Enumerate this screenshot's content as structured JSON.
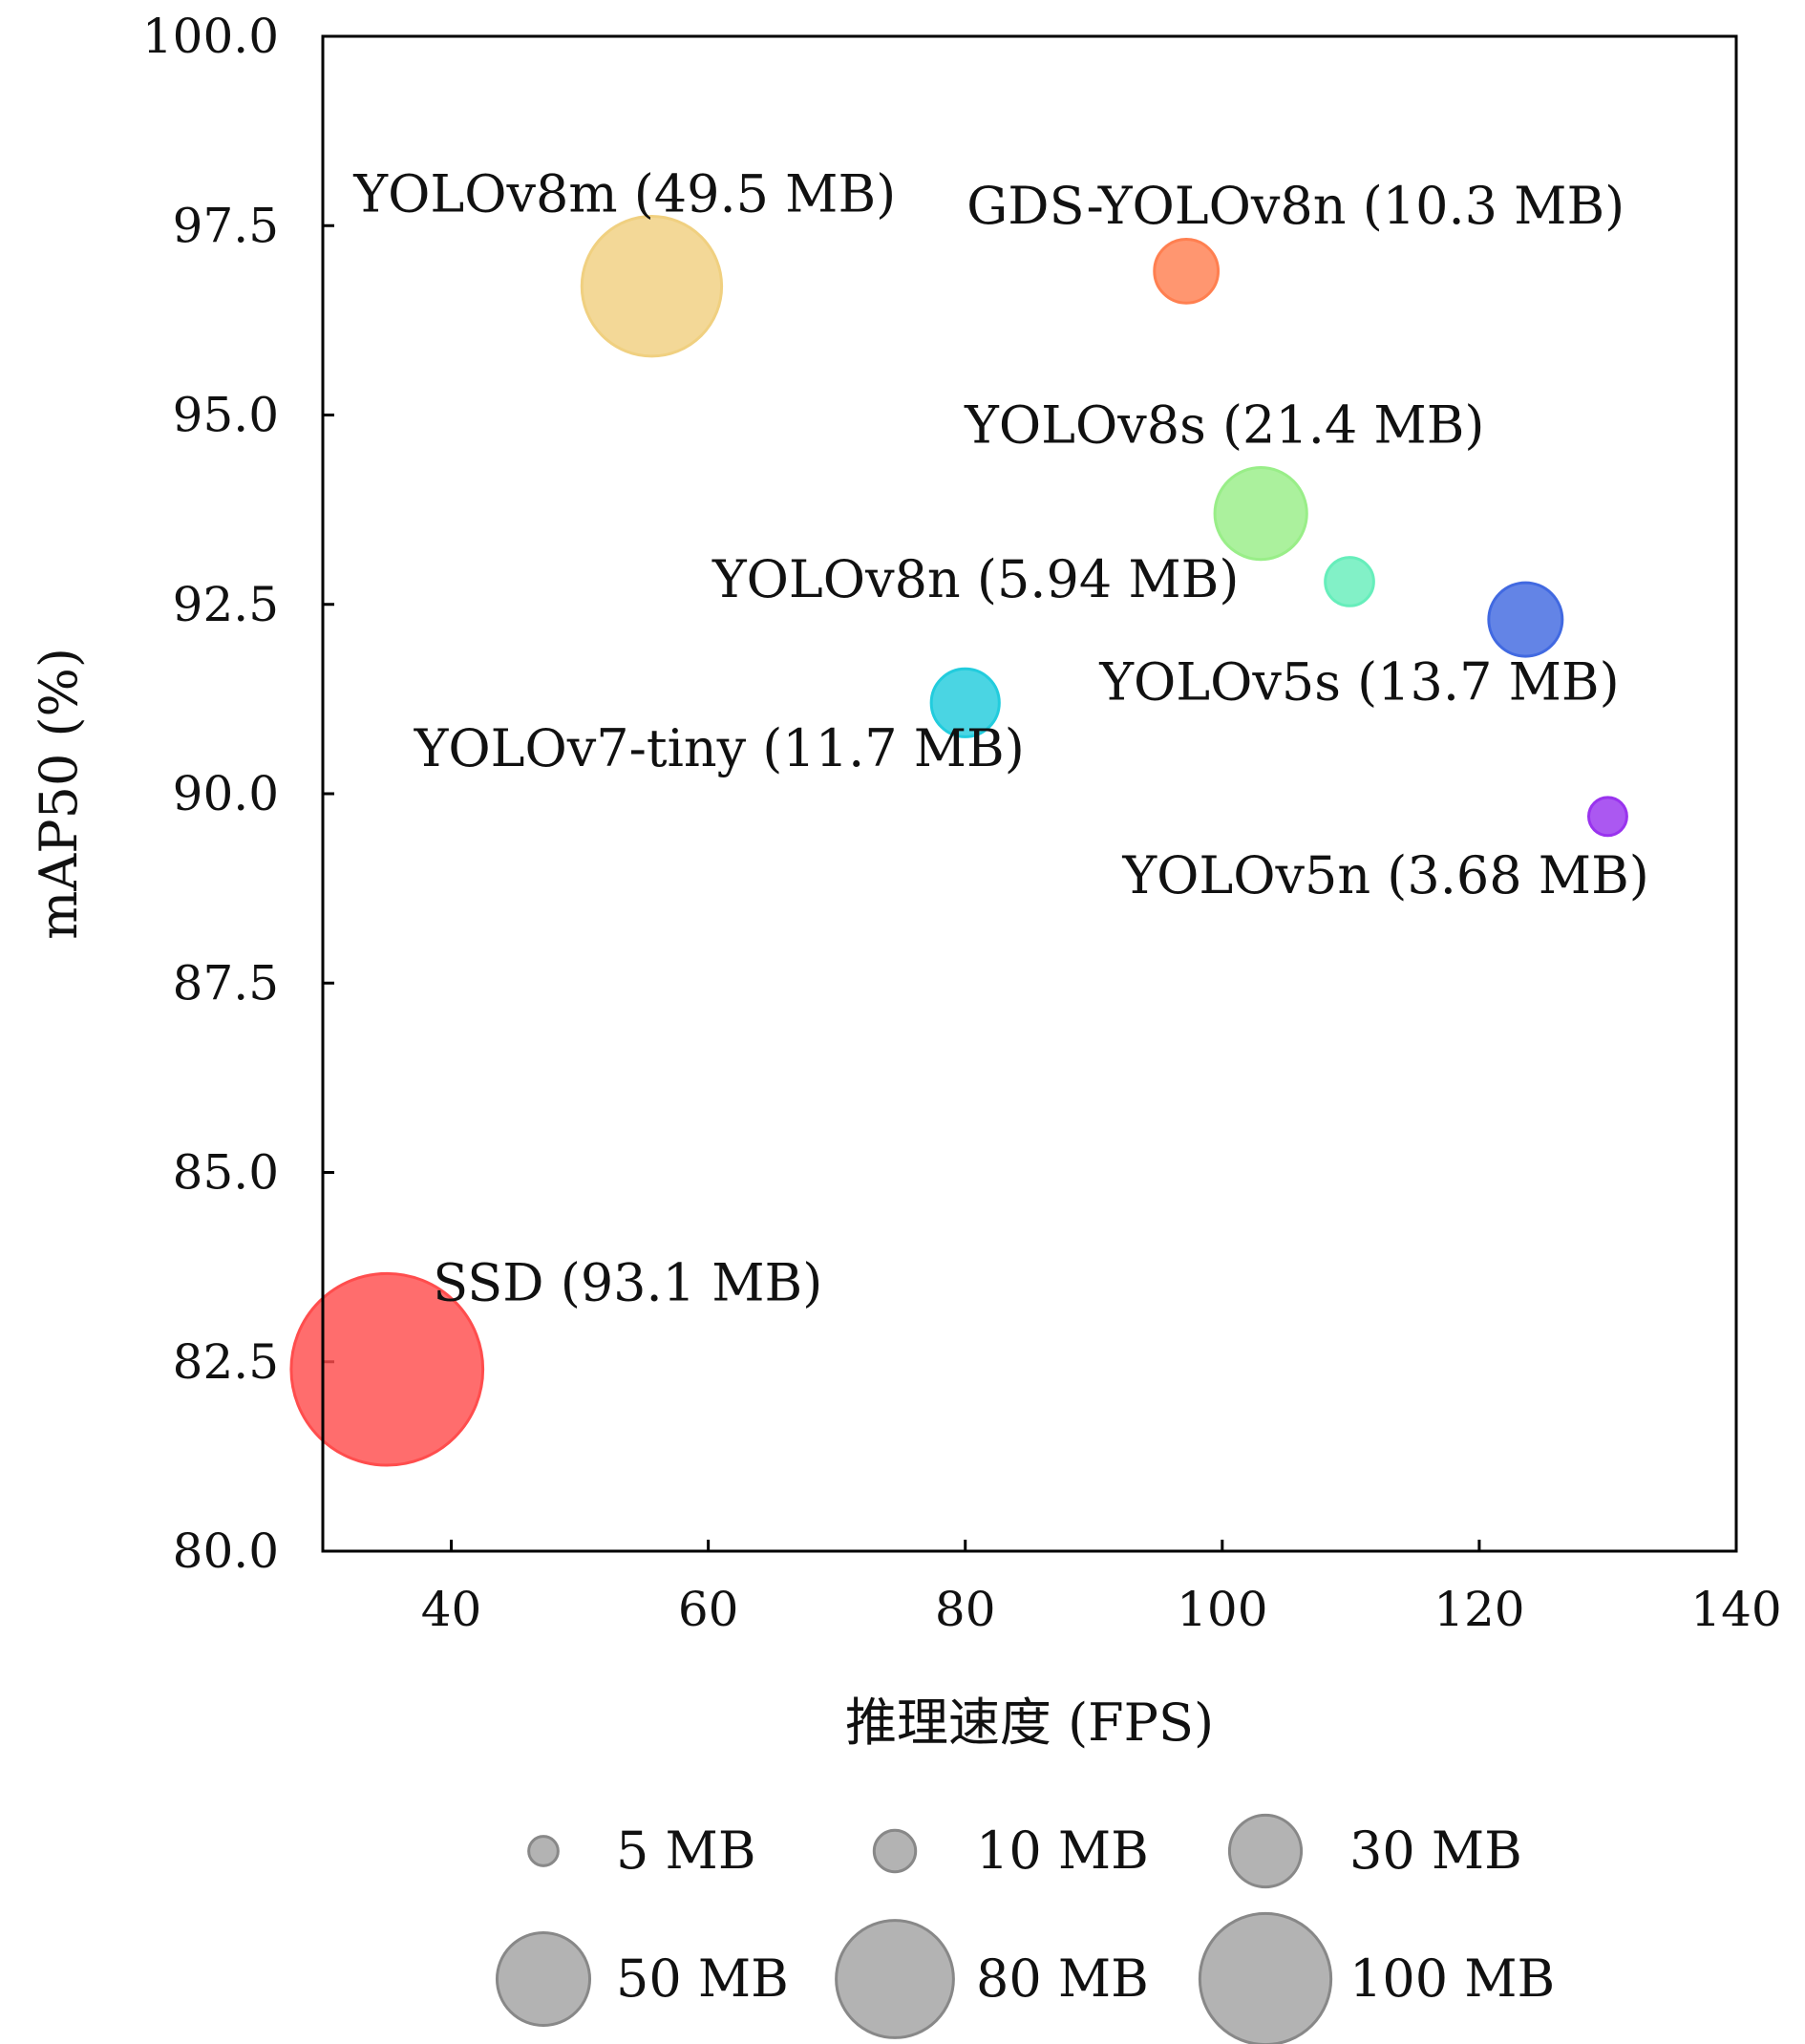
{
  "chart_data": {
    "type": "scatter",
    "xlabel": "推理速度 (FPS)",
    "ylabel": "mAP50 (%)",
    "xlim": [
      30,
      140
    ],
    "ylim": [
      80.0,
      100.0
    ],
    "xticks": [
      40,
      60,
      80,
      100,
      120,
      140
    ],
    "yticks": [
      "80.0",
      "82.5",
      "85.0",
      "87.5",
      "90.0",
      "92.5",
      "95.0",
      "97.5",
      "100.0"
    ],
    "grid": false,
    "size_unit": "MB",
    "points": [
      {
        "label": "SSD (93.1 MB)",
        "x": 35,
        "y": 82.4,
        "size": 93.1,
        "color": "#ff4d4d"
      },
      {
        "label": "YOLOv8m (49.5 MB)",
        "x": 55.6,
        "y": 96.7,
        "size": 49.5,
        "color": "#f0d080"
      },
      {
        "label": "GDS-YOLOv8n (10.3 MB)",
        "x": 97.2,
        "y": 96.9,
        "size": 10.3,
        "color": "#ff7f50"
      },
      {
        "label": "YOLOv8s (21.4 MB)",
        "x": 103,
        "y": 93.7,
        "size": 21.4,
        "color": "#99ee88"
      },
      {
        "label": "YOLOv8n (5.94 MB)",
        "x": 109.9,
        "y": 92.8,
        "size": 5.94,
        "color": "#66eebb"
      },
      {
        "label": "YOLOv5s (13.7 MB)",
        "x": 123.6,
        "y": 92.3,
        "size": 13.7,
        "color": "#4169e1"
      },
      {
        "label": "YOLOv7-tiny (11.7 MB)",
        "x": 80,
        "y": 91.2,
        "size": 11.7,
        "color": "#22ccdd"
      },
      {
        "label": "YOLOv5n (3.68 MB)",
        "x": 130,
        "y": 89.7,
        "size": 3.68,
        "color": "#9933ee"
      }
    ],
    "legend": {
      "placement": "bottom",
      "title": "",
      "color": "#999999",
      "entries": [
        {
          "label": "5 MB",
          "size": 5
        },
        {
          "label": "10 MB",
          "size": 10
        },
        {
          "label": "30 MB",
          "size": 30
        },
        {
          "label": "50 MB",
          "size": 50
        },
        {
          "label": "80 MB",
          "size": 80
        },
        {
          "label": "100 MB",
          "size": 100
        }
      ]
    }
  }
}
